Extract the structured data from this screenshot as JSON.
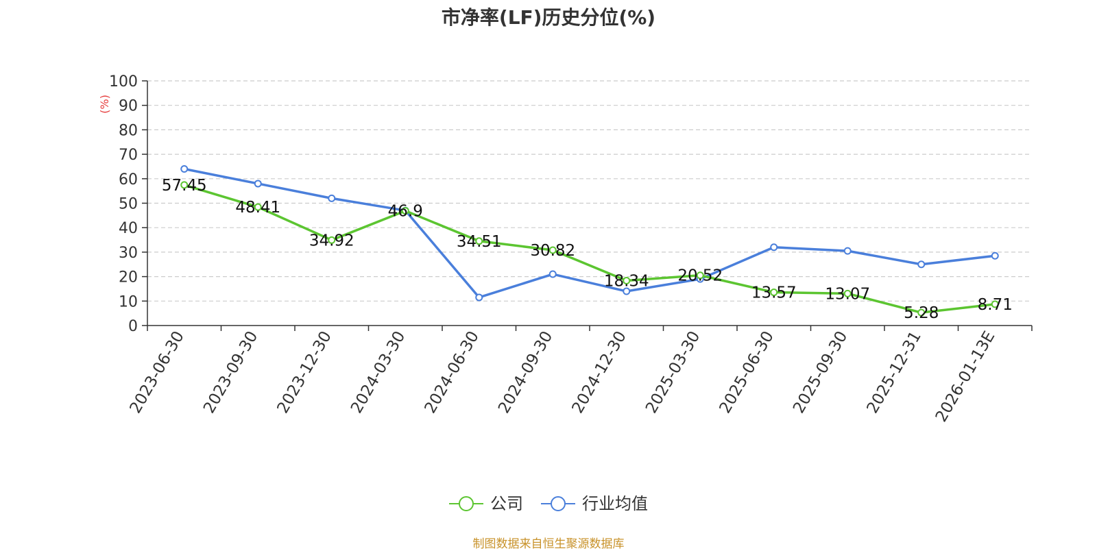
{
  "chart_data": {
    "type": "line",
    "title": "市净率(LF)历史分位(%)",
    "ylabel": "(%)",
    "xlabel": "",
    "ylim": [
      0,
      100
    ],
    "yticks": [
      0,
      10,
      20,
      30,
      40,
      50,
      60,
      70,
      80,
      90,
      100
    ],
    "grid": true,
    "legend_position": "bottom",
    "categories": [
      "2023-06-30",
      "2023-09-30",
      "2023-12-30",
      "2024-03-30",
      "2024-06-30",
      "2024-09-30",
      "2024-12-30",
      "2025-03-30",
      "2025-06-30",
      "2025-09-30",
      "2025-12-31",
      "2026-01-13E"
    ],
    "series": [
      {
        "name": "公司",
        "color": "#5cc531",
        "values": [
          57.45,
          48.41,
          34.92,
          46.9,
          34.51,
          30.82,
          18.34,
          20.52,
          13.57,
          13.07,
          5.28,
          8.71
        ],
        "data_labels": [
          "57.45",
          "48.41",
          "34.92",
          "46.9",
          "34.51",
          "30.82",
          "18.34",
          "20.52",
          "13.57",
          "13.07",
          "5.28",
          "8.71"
        ]
      },
      {
        "name": "行业均值",
        "color": "#4a7fdb",
        "values": [
          64,
          58,
          52,
          47,
          11.5,
          21,
          14,
          19,
          32,
          30.5,
          25,
          28.5
        ]
      }
    ]
  },
  "source_text": "制图数据来自恒生聚源数据库"
}
